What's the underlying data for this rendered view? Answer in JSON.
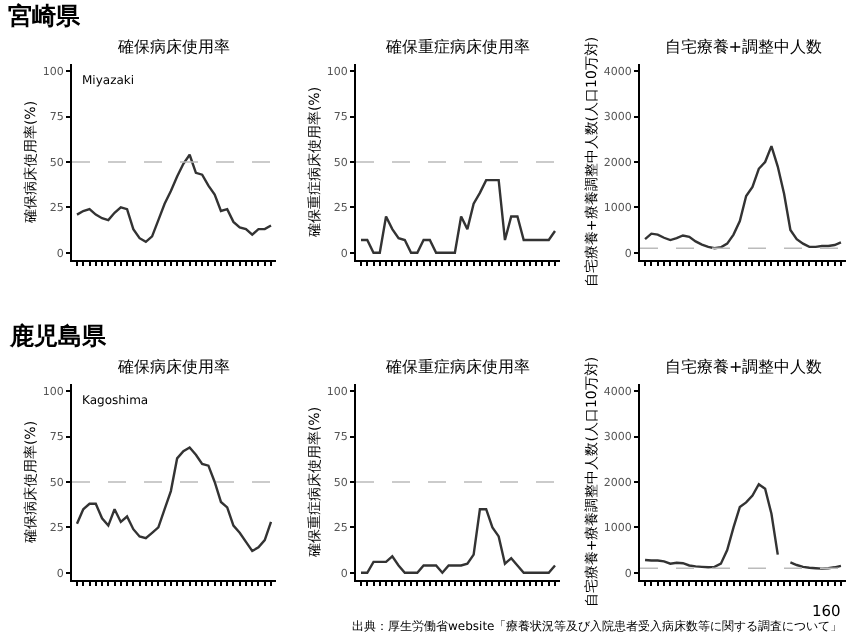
{
  "chart_data": [
    {
      "type": "line",
      "title": "確保病床使用率",
      "ylabel": "確保病床使用率(%)",
      "annotations": [
        "宮崎県",
        "Miyazaki"
      ],
      "categories": [
        null,
        null,
        null,
        null,
        null,
        null,
        null,
        null,
        null,
        null,
        null,
        null,
        null,
        null,
        null,
        null,
        null,
        null,
        null,
        null,
        null,
        null,
        null,
        null,
        null,
        null,
        null,
        null,
        null,
        null,
        null,
        null
      ],
      "values": [
        21,
        23,
        24,
        21,
        19,
        18,
        22,
        25,
        24,
        13,
        8,
        6,
        9,
        18,
        27,
        34,
        42,
        49,
        54,
        44,
        43,
        37,
        32,
        23,
        24,
        17,
        14,
        13,
        10,
        13,
        13,
        15
      ],
      "color": "#333333",
      "ylim": [
        -4,
        104
      ],
      "yticks": [
        0,
        25,
        50,
        75,
        100
      ],
      "ref_lines": [
        {
          "axis": "y",
          "value": 50,
          "color": "#bbbbbb",
          "line_style": "dashed"
        }
      ]
    },
    {
      "type": "line",
      "title": "確保重症病床使用率",
      "ylabel": "確保重症病床使用率(%)",
      "categories": [
        null,
        null,
        null,
        null,
        null,
        null,
        null,
        null,
        null,
        null,
        null,
        null,
        null,
        null,
        null,
        null,
        null,
        null,
        null,
        null,
        null,
        null,
        null,
        null,
        null,
        null,
        null,
        null,
        null,
        null,
        null,
        null
      ],
      "values": [
        7,
        7,
        0,
        0,
        20,
        13,
        8,
        7,
        0,
        0,
        7,
        7,
        0,
        0,
        0,
        0,
        20,
        13,
        27,
        33,
        40,
        40,
        40,
        7,
        20,
        20,
        7,
        7,
        7,
        7,
        7,
        12
      ],
      "color": "#333333",
      "ylim": [
        -4,
        104
      ],
      "yticks": [
        0,
        25,
        50,
        75,
        100
      ],
      "ref_lines": [
        {
          "axis": "y",
          "value": 50,
          "color": "#bbbbbb",
          "line_style": "dashed"
        }
      ]
    },
    {
      "type": "line",
      "title": "自宅療養+調整中人数",
      "ylabel": "自宅療養+療養調整中人数(人口10万対)",
      "categories": [
        null,
        null,
        null,
        null,
        null,
        null,
        null,
        null,
        null,
        null,
        null,
        null,
        null,
        null,
        null,
        null,
        null,
        null,
        null,
        null,
        null,
        null,
        null,
        null,
        null,
        null,
        null,
        null,
        null,
        null,
        null,
        null
      ],
      "values": [
        300,
        420,
        400,
        330,
        280,
        320,
        380,
        350,
        250,
        180,
        130,
        100,
        120,
        200,
        400,
        700,
        1250,
        1450,
        1850,
        2000,
        2350,
        1900,
        1300,
        500,
        300,
        200,
        130,
        130,
        150,
        150,
        170,
        230
      ],
      "color": "#333333",
      "ylim": [
        -160,
        4160
      ],
      "yticks": [
        0,
        1000,
        2000,
        3000,
        4000
      ],
      "ref_lines": [
        {
          "axis": "y",
          "value": 100,
          "color": "#bbbbbb",
          "line_style": "dashed"
        }
      ]
    },
    {
      "type": "line",
      "title": "確保病床使用率",
      "ylabel": "確保病床使用率(%)",
      "annotations": [
        "鹿児島県",
        "Kagoshima"
      ],
      "categories": [
        null,
        null,
        null,
        null,
        null,
        null,
        null,
        null,
        null,
        null,
        null,
        null,
        null,
        null,
        null,
        null,
        null,
        null,
        null,
        null,
        null,
        null,
        null,
        null,
        null,
        null,
        null,
        null,
        null,
        null,
        null,
        null
      ],
      "values": [
        27,
        35,
        38,
        38,
        30,
        26,
        35,
        28,
        31,
        24,
        20,
        19,
        22,
        25,
        35,
        45,
        63,
        67,
        69,
        65,
        60,
        59,
        50,
        39,
        36,
        26,
        22,
        17,
        12,
        14,
        18,
        28
      ],
      "color": "#333333",
      "ylim": [
        -4,
        104
      ],
      "yticks": [
        0,
        25,
        50,
        75,
        100
      ],
      "ref_lines": [
        {
          "axis": "y",
          "value": 50,
          "color": "#bbbbbb",
          "line_style": "dashed"
        }
      ]
    },
    {
      "type": "line",
      "title": "確保重症病床使用率",
      "ylabel": "確保重症病床使用率(%)",
      "categories": [
        null,
        null,
        null,
        null,
        null,
        null,
        null,
        null,
        null,
        null,
        null,
        null,
        null,
        null,
        null,
        null,
        null,
        null,
        null,
        null,
        null,
        null,
        null,
        null,
        null,
        null,
        null,
        null,
        null,
        null,
        null,
        null
      ],
      "values": [
        0,
        0,
        6,
        6,
        6,
        9,
        4,
        0,
        0,
        0,
        4,
        4,
        4,
        0,
        4,
        4,
        4,
        5,
        10,
        35,
        35,
        25,
        20,
        5,
        8,
        4,
        0,
        0,
        0,
        0,
        0,
        4
      ],
      "color": "#333333",
      "ylim": [
        -4,
        104
      ],
      "yticks": [
        0,
        25,
        50,
        75,
        100
      ],
      "ref_lines": [
        {
          "axis": "y",
          "value": 50,
          "color": "#bbbbbb",
          "line_style": "dashed"
        }
      ]
    },
    {
      "type": "line",
      "title": "自宅療養+調整中人数",
      "ylabel": "自宅療養+療養調整中人数(人口10万対)",
      "annotations": [
        "出典：厚生労働省website「療養状況等及び入院患者受入病床数等に関する調査について」",
        "160"
      ],
      "categories": [
        null,
        null,
        null,
        null,
        null,
        null,
        null,
        null,
        null,
        null,
        null,
        null,
        null,
        null,
        null,
        null,
        null,
        null,
        null,
        null,
        null,
        null,
        null,
        null,
        null,
        null,
        null,
        null,
        null,
        null,
        null,
        null
      ],
      "series": [
        {
          "color": "#333333",
          "values": [
            280,
            270,
            270,
            250,
            200,
            220,
            210,
            160,
            140,
            130,
            120,
            130,
            200,
            500,
            1000,
            1450,
            1550,
            1700,
            1950,
            1850,
            1300,
            400,
            null,
            null,
            null,
            null,
            null,
            null,
            null,
            null,
            null,
            null
          ]
        },
        {
          "color": "#333333",
          "values": [
            null,
            null,
            null,
            null,
            null,
            null,
            null,
            null,
            null,
            null,
            null,
            null,
            null,
            null,
            null,
            null,
            null,
            null,
            null,
            null,
            null,
            null,
            null,
            230,
            170,
            130,
            110,
            100,
            90,
            100,
            120,
            150
          ]
        }
      ],
      "ylim": [
        -160,
        4160
      ],
      "yticks": [
        0,
        1000,
        2000,
        3000,
        4000
      ],
      "ref_lines": [
        {
          "axis": "y",
          "value": 100,
          "color": "#bbbbbb",
          "line_style": "dashed"
        }
      ]
    }
  ]
}
